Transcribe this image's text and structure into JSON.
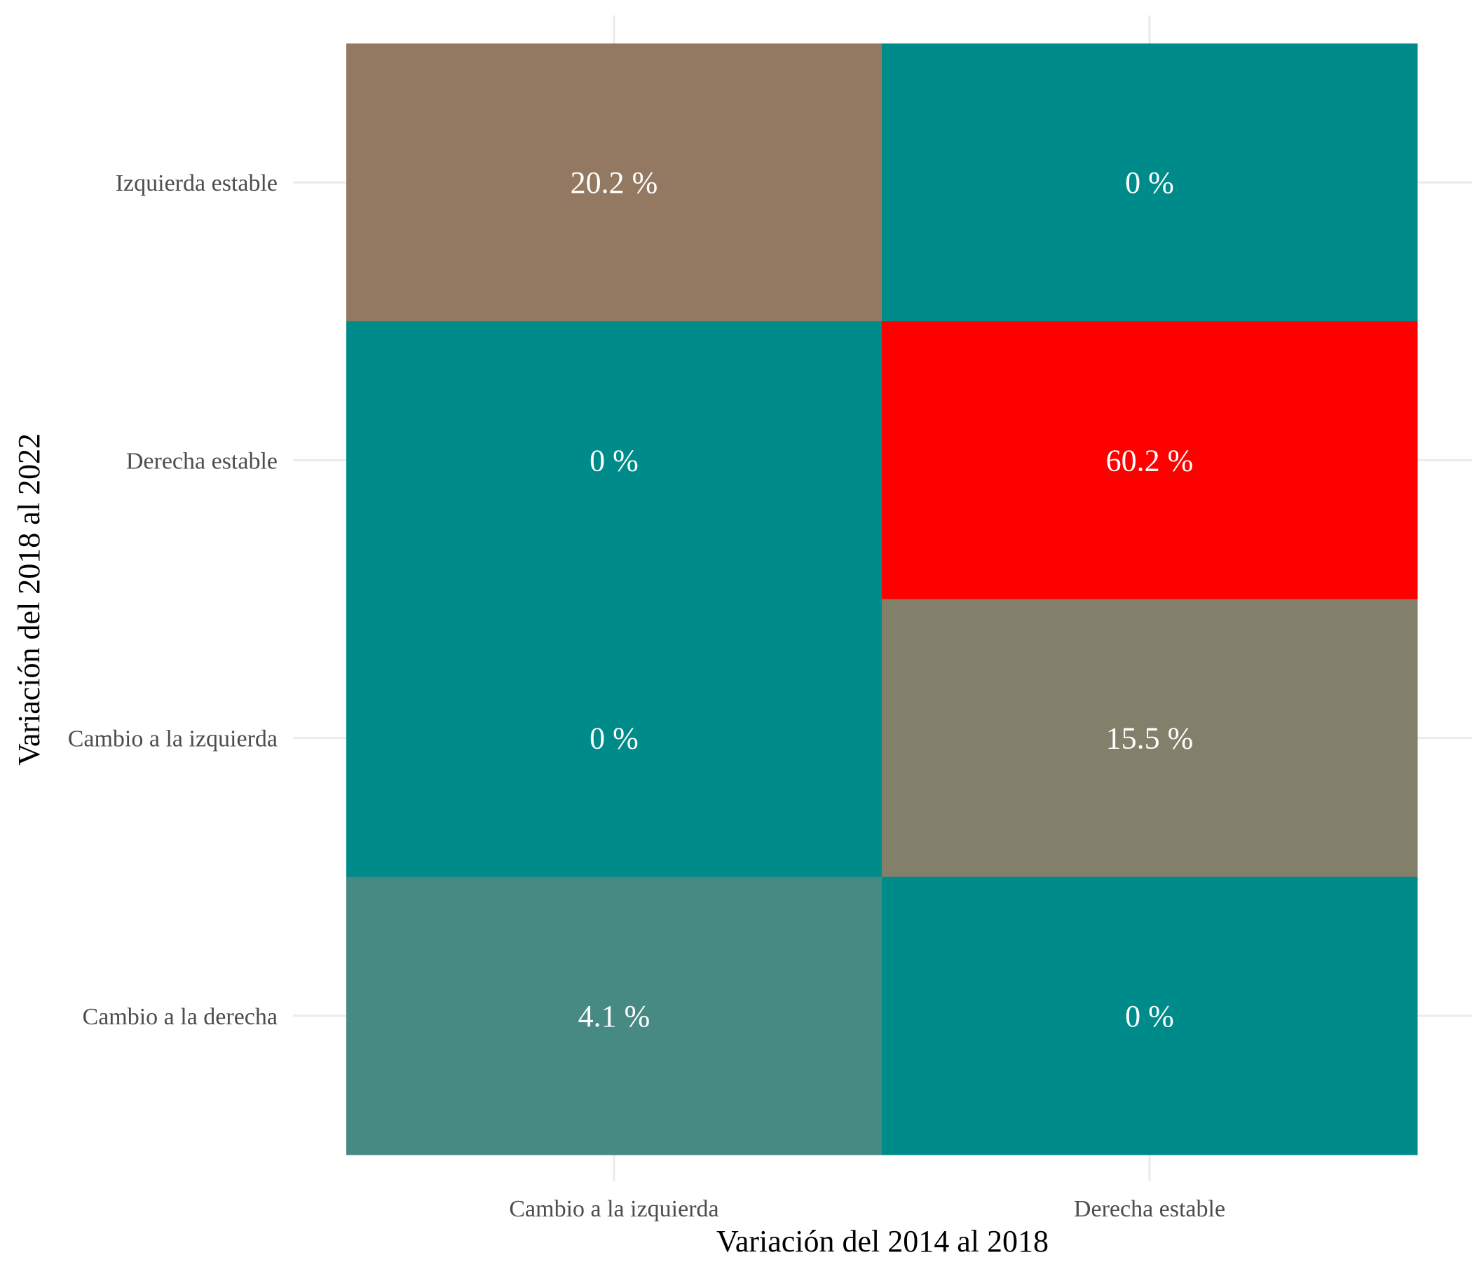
{
  "chart_data": {
    "type": "heatmap",
    "title": "",
    "xlabel": "Variación del 2014 al 2018",
    "ylabel": "Variación del 2018 al 2022",
    "x_categories": [
      "Cambio a la izquierda",
      "Derecha estable"
    ],
    "y_categories": [
      "Izquierda estable",
      "Derecha estable",
      "Cambio a la izquierda",
      "Cambio a la derecha"
    ],
    "cells": [
      {
        "x": "Cambio a la izquierda",
        "y": "Izquierda estable",
        "value": 20.2,
        "label": "20.2 %",
        "color": "#937961"
      },
      {
        "x": "Derecha estable",
        "y": "Izquierda estable",
        "value": 0,
        "label": "0 %",
        "color": "#008b8b"
      },
      {
        "x": "Cambio a la izquierda",
        "y": "Derecha estable",
        "value": 0,
        "label": "0 %",
        "color": "#008b8b"
      },
      {
        "x": "Derecha estable",
        "y": "Derecha estable",
        "value": 60.2,
        "label": "60.2 %",
        "color": "#ff0000"
      },
      {
        "x": "Cambio a la izquierda",
        "y": "Cambio a la izquierda",
        "value": 0,
        "label": "0 %",
        "color": "#008b8b"
      },
      {
        "x": "Derecha estable",
        "y": "Cambio a la izquierda",
        "value": 15.5,
        "label": "15.5 %",
        "color": "#827f6b"
      },
      {
        "x": "Cambio a la izquierda",
        "y": "Cambio a la derecha",
        "value": 4.1,
        "label": "4.1 %",
        "color": "#478983"
      },
      {
        "x": "Derecha estable",
        "y": "Cambio a la derecha",
        "value": 0,
        "label": "0 %",
        "color": "#008b8b"
      }
    ],
    "legend": "none",
    "grid": true
  }
}
